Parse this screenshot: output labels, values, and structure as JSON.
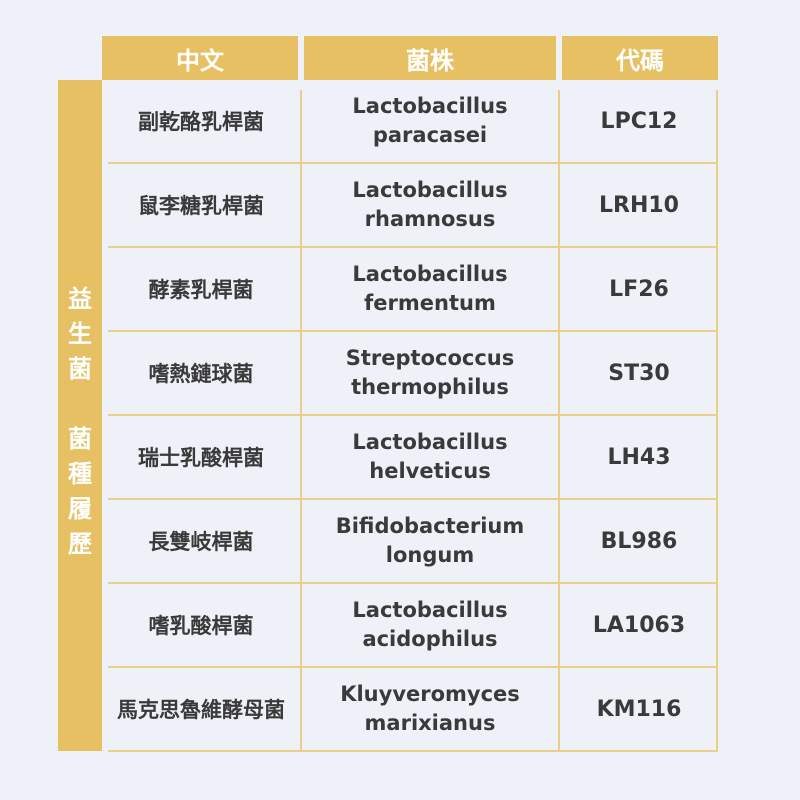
{
  "colors": {
    "accent": "#e6c063",
    "background": "#eef2f8",
    "line": "#e8cf8a"
  },
  "header": {
    "col_chinese": "中文",
    "col_strain": "菌株",
    "col_code": "代碼"
  },
  "sidebar": {
    "chars": [
      "益",
      "生",
      "菌",
      "",
      "菌",
      "種",
      "履",
      "歷"
    ]
  },
  "rows": [
    {
      "zh": "副乾酪乳桿菌",
      "latin1": "Lactobacillus",
      "latin2": "paracasei",
      "code": "LPC12"
    },
    {
      "zh": "鼠李糖乳桿菌",
      "latin1": "Lactobacillus",
      "latin2": "rhamnosus",
      "code": "LRH10"
    },
    {
      "zh": "酵素乳桿菌",
      "latin1": "Lactobacillus",
      "latin2": "fermentum",
      "code": "LF26"
    },
    {
      "zh": "嗜熱鏈球菌",
      "latin1": "Streptococcus",
      "latin2": "thermophilus",
      "code": "ST30"
    },
    {
      "zh": "瑞士乳酸桿菌",
      "latin1": "Lactobacillus",
      "latin2": "helveticus",
      "code": "LH43"
    },
    {
      "zh": "長雙岐桿菌",
      "latin1": "Bifidobacterium",
      "latin2": "longum",
      "code": "BL986"
    },
    {
      "zh": "嗜乳酸桿菌",
      "latin1": "Lactobacillus",
      "latin2": "acidophilus",
      "code": "LA1063"
    },
    {
      "zh": "馬克思魯維酵母菌",
      "latin1": "Kluyveromyces",
      "latin2": "marixianus",
      "code": "KM116"
    }
  ]
}
